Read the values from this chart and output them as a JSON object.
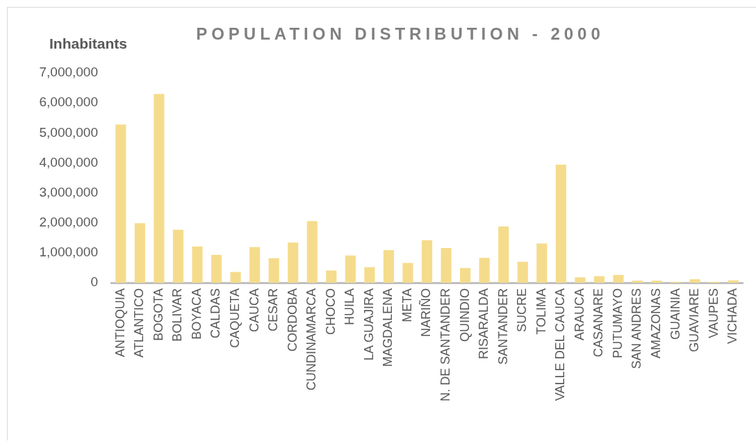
{
  "chart_data": {
    "type": "bar",
    "title": "POPULATION DISTRIBUTION - 2000",
    "ylabel": "Inhabitants",
    "categories": [
      "ANTIOQUIA",
      "ATLANTICO",
      "BOGOTA",
      "BOLIVAR",
      "BOYACA",
      "CALDAS",
      "CAQUETA",
      "CAUCA",
      "CESAR",
      "CORDOBA",
      "CUNDINAMARCA",
      "CHOCO",
      "HUILA",
      "LA GUAJIRA",
      "MAGDALENA",
      "META",
      "NARIÑO",
      "N. DE SANTANDER",
      "QUINDIO",
      "RISARALDA",
      "SANTANDER",
      "SUCRE",
      "TOLIMA",
      "VALLE DEL CAUCA",
      "ARAUCA",
      "CASANARE",
      "PUTUMAYO",
      "SAN ANDRES",
      "AMAZONAS",
      "GUAINIA",
      "GUAVIARE",
      "VAUPES",
      "VICHADA"
    ],
    "values": [
      5280000,
      1990000,
      6300000,
      1770000,
      1210000,
      930000,
      360000,
      1190000,
      820000,
      1340000,
      2060000,
      410000,
      910000,
      520000,
      1090000,
      660000,
      1420000,
      1160000,
      490000,
      830000,
      1880000,
      700000,
      1310000,
      3940000,
      180000,
      220000,
      260000,
      70000,
      70000,
      30000,
      120000,
      30000,
      80000
    ],
    "color": "#f5dc8c",
    "ylim": [
      0,
      7000000
    ],
    "yticks": [
      0,
      {
        "value": 1000000,
        "label": "1,000,000"
      },
      {
        "value": 2000000,
        "label": "2,000,000"
      },
      {
        "value": 3000000,
        "label": "3,000,000"
      },
      {
        "value": 4000000,
        "label": "4,000,000"
      },
      {
        "value": 5000000,
        "label": "5,000,000"
      },
      {
        "value": 6000000,
        "label": "6,000,000"
      },
      {
        "value": 7000000,
        "label": "7,000,000"
      }
    ],
    "grid": false
  }
}
